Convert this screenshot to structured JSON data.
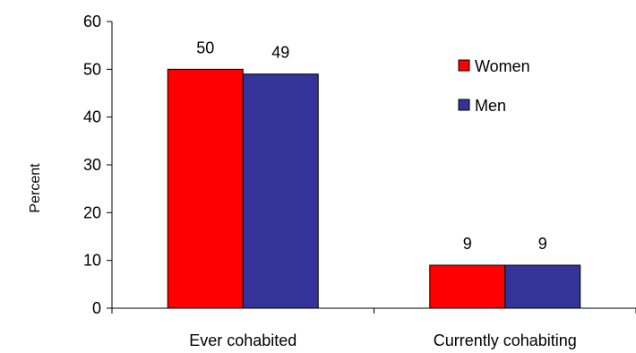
{
  "chart_data": {
    "type": "bar",
    "categories": [
      "Ever cohabited",
      "Currently cohabiting"
    ],
    "series": [
      {
        "name": "Women",
        "values": [
          50,
          9
        ],
        "color": "#ff0000"
      },
      {
        "name": "Men",
        "values": [
          49,
          9
        ],
        "color": "#333399"
      }
    ],
    "data_labels": [
      [
        "50",
        "9"
      ],
      [
        "49",
        "9"
      ]
    ],
    "ylabel": "Percent",
    "ylim": [
      0,
      60
    ],
    "yticks": [
      0,
      10,
      20,
      30,
      40,
      50,
      60
    ],
    "grid": false,
    "legend_position": "top-right"
  }
}
